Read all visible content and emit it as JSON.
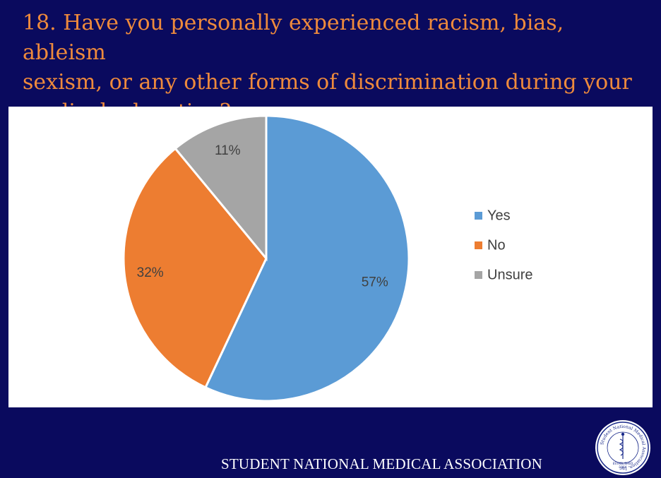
{
  "slide": {
    "title": "18. Have you personally experienced racism, bias, ableism\nsexism, or any other forms of discrimination during your\nmedical education?",
    "footer_text": "STUDENT  NATIONAL MEDICAL ASSOCIATION",
    "logo_text": "Student National Medical Association, Inc.",
    "logo_established": "ESTABLISHED",
    "logo_year": "1964"
  },
  "colors": {
    "background": "#0a0a5e",
    "title": "#ee8a3c",
    "yes": "#5b9bd5",
    "no": "#ed7d31",
    "unsure": "#a5a5a5"
  },
  "chart_data": {
    "type": "pie",
    "categories": [
      "Yes",
      "No",
      "Unsure"
    ],
    "values": [
      57,
      32,
      11
    ],
    "data_labels": [
      "57%",
      "32%",
      "11%"
    ],
    "legend_placement": "right",
    "colors": [
      "#5b9bd5",
      "#ed7d31",
      "#a5a5a5"
    ]
  }
}
